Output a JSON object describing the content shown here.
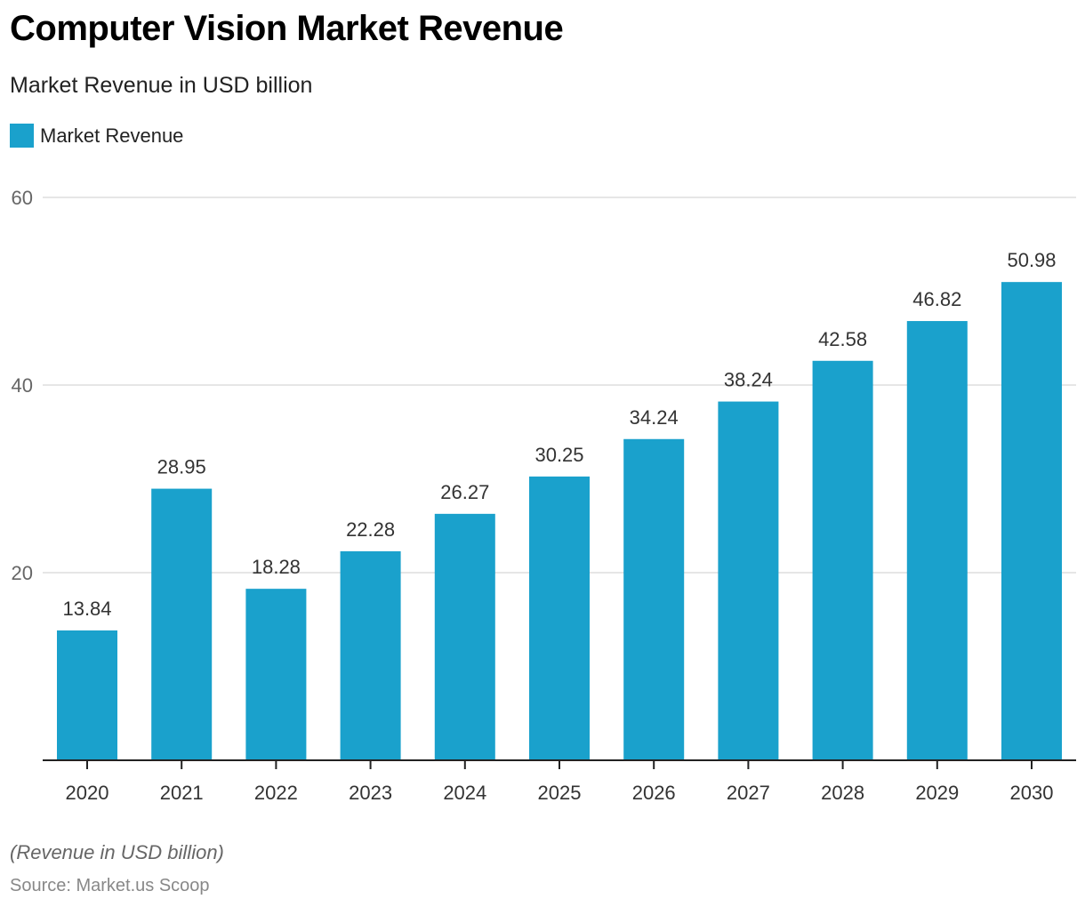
{
  "chart_data": {
    "type": "bar",
    "title": "Computer Vision Market Revenue",
    "subtitle": "Market Revenue in USD billion",
    "xlabel": "",
    "ylabel": "",
    "categories": [
      "2020",
      "2021",
      "2022",
      "2023",
      "2024",
      "2025",
      "2026",
      "2027",
      "2028",
      "2029",
      "2030"
    ],
    "series": [
      {
        "name": "Market Revenue",
        "values": [
          13.84,
          28.95,
          18.28,
          22.28,
          26.27,
          30.25,
          34.24,
          38.24,
          42.58,
          46.82,
          50.98
        ]
      }
    ],
    "data_labels": [
      "13.84",
      "28.95",
      "18.28",
      "22.28",
      "26.27",
      "30.25",
      "34.24",
      "38.24",
      "42.58",
      "46.82",
      "50.98"
    ],
    "ylim": [
      0,
      60
    ],
    "yticks": [
      20,
      40,
      60
    ],
    "ytick_labels": [
      "20",
      "40",
      "60"
    ],
    "grid": true,
    "legend": {
      "position": "top-left",
      "entries": [
        "Market Revenue"
      ]
    },
    "colors": {
      "bar": "#1aa1cc",
      "grid": "#dddddd",
      "axis": "#222222"
    },
    "note": "(Revenue in USD billion)",
    "source": "Source: Market.us Scoop"
  }
}
